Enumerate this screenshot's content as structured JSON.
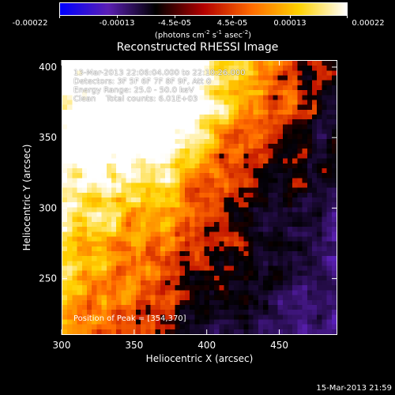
{
  "colorbar": {
    "tick_labels": [
      "-0.00022",
      "-0.00013",
      "-4.5e-05",
      "4.5e-05",
      "0.00013",
      "0.00022"
    ],
    "units_prefix": "(photons cm",
    "units_sup1": "-2",
    "units_mid": " s",
    "units_sup2": "-1",
    "units_mid2": " asec",
    "units_sup3": "-2",
    "units_suffix": ")"
  },
  "chart_data": {
    "type": "heatmap",
    "title": "Reconstructed RHESSI Image",
    "xlabel": "Heliocentric X (arcsec)",
    "ylabel": "Heliocentric Y (arcsec)",
    "xlim": [
      300,
      490
    ],
    "ylim": [
      210,
      405
    ],
    "x_ticks": [
      300,
      350,
      400,
      450
    ],
    "y_ticks": [
      250,
      300,
      350,
      400
    ],
    "value_range": [
      -0.00022,
      0.00022
    ],
    "colormap": [
      "#0000ff",
      "#5b1fb4",
      "#000000",
      "#b30000",
      "#ff6a00",
      "#ffd200",
      "#ffffff"
    ],
    "annotations": [
      "13-Mar-2013 22:06:04.000 to 22:10:26.000",
      "Detectors: 3F 5F 6F 7F 8F 9F, Att 0",
      "Energy Range: 25.0 - 50.0 keV",
      "Clean    Total counts: 6.01E+03"
    ],
    "peak_label": "Position of Peak = [354,370]",
    "peak": [
      354,
      370
    ]
  },
  "footer_date": "15-Mar-2013 21:59"
}
